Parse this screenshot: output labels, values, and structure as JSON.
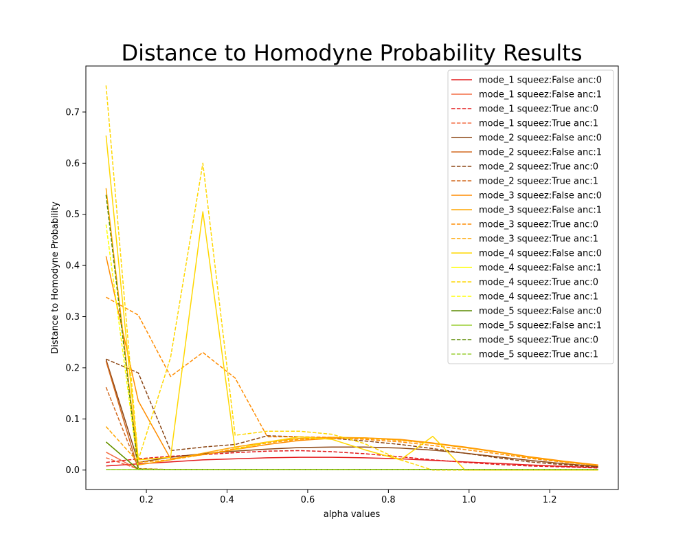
{
  "chart_data": {
    "type": "line",
    "title": "Distance to Homodyne Probability Results",
    "xlabel": "alpha values",
    "ylabel": "Distance to Homodyne Probability",
    "xlim": [
      0.05,
      1.37
    ],
    "ylim": [
      -0.038,
      0.79
    ],
    "xticks": [
      0.2,
      0.4,
      0.6,
      0.8,
      1.0,
      1.2
    ],
    "xtick_labels": [
      "0.2",
      "0.4",
      "0.6",
      "0.8",
      "1.0",
      "1.2"
    ],
    "yticks": [
      0.0,
      0.1,
      0.2,
      0.3,
      0.4,
      0.5,
      0.6,
      0.7
    ],
    "ytick_labels": [
      "0.0",
      "0.1",
      "0.2",
      "0.3",
      "0.4",
      "0.5",
      "0.6",
      "0.7"
    ],
    "legend_position": "upper-right",
    "grid": false,
    "x": [
      0.1,
      0.18,
      0.26,
      0.34,
      0.42,
      0.5,
      0.58,
      0.66,
      0.74,
      0.83,
      0.91,
      0.99,
      1.07,
      1.15,
      1.24,
      1.32
    ],
    "series": [
      {
        "name": "mode_1 squeez:False anc:0",
        "color": "#e31a1c",
        "dash": "solid",
        "values": [
          0.008,
          0.012,
          0.016,
          0.02,
          0.022,
          0.024,
          0.025,
          0.025,
          0.024,
          0.022,
          0.019,
          0.016,
          0.013,
          0.01,
          0.007,
          0.005
        ]
      },
      {
        "name": "mode_1 squeez:False anc:1",
        "color": "#f46d43",
        "dash": "solid",
        "values": [
          0.035,
          0.001,
          0.001,
          0.001,
          0.001,
          0.001,
          0.001,
          0.001,
          0.001,
          0.001,
          0.001,
          0.001,
          0.001,
          0.001,
          0.001,
          0.001
        ]
      },
      {
        "name": "mode_1 squeez:True anc:0",
        "color": "#e31a1c",
        "dash": "dashed",
        "values": [
          0.015,
          0.022,
          0.027,
          0.03,
          0.034,
          0.037,
          0.038,
          0.036,
          0.032,
          0.026,
          0.02,
          0.015,
          0.011,
          0.008,
          0.006,
          0.004
        ]
      },
      {
        "name": "mode_1 squeez:True anc:1",
        "color": "#f46d43",
        "dash": "dashed",
        "values": [
          0.024,
          0.002,
          0.001,
          0.001,
          0.001,
          0.001,
          0.001,
          0.001,
          0.001,
          0.001,
          0.001,
          0.001,
          0.001,
          0.001,
          0.001,
          0.001
        ]
      },
      {
        "name": "mode_2 squeez:False anc:0",
        "color": "#8b4513",
        "dash": "solid",
        "values": [
          0.216,
          0.015,
          0.025,
          0.032,
          0.037,
          0.041,
          0.044,
          0.045,
          0.045,
          0.043,
          0.039,
          0.033,
          0.026,
          0.019,
          0.012,
          0.007
        ]
      },
      {
        "name": "mode_2 squeez:False anc:1",
        "color": "#d2691e",
        "dash": "solid",
        "values": [
          0.213,
          0.001,
          0.001,
          0.001,
          0.001,
          0.001,
          0.001,
          0.001,
          0.001,
          0.001,
          0.001,
          0.001,
          0.001,
          0.001,
          0.001,
          0.001
        ]
      },
      {
        "name": "mode_2 squeez:True anc:0",
        "color": "#8b4513",
        "dash": "dashed",
        "values": [
          0.217,
          0.19,
          0.038,
          0.045,
          0.05,
          0.067,
          0.065,
          0.062,
          0.057,
          0.05,
          0.042,
          0.033,
          0.024,
          0.016,
          0.01,
          0.006
        ]
      },
      {
        "name": "mode_2 squeez:True anc:1",
        "color": "#d2691e",
        "dash": "dashed",
        "values": [
          0.162,
          0.003,
          0.001,
          0.001,
          0.001,
          0.001,
          0.001,
          0.001,
          0.001,
          0.001,
          0.001,
          0.001,
          0.001,
          0.001,
          0.001,
          0.001
        ]
      },
      {
        "name": "mode_3 squeez:False anc:0",
        "color": "#ff8c00",
        "dash": "solid",
        "values": [
          0.418,
          0.135,
          0.022,
          0.03,
          0.04,
          0.05,
          0.058,
          0.062,
          0.063,
          0.06,
          0.053,
          0.045,
          0.036,
          0.026,
          0.017,
          0.01
        ]
      },
      {
        "name": "mode_3 squeez:False anc:1",
        "color": "#ffa500",
        "dash": "solid",
        "values": [
          0.551,
          0.01,
          0.02,
          0.033,
          0.045,
          0.055,
          0.062,
          0.064,
          0.063,
          0.059,
          0.052,
          0.044,
          0.035,
          0.025,
          0.016,
          0.009
        ]
      },
      {
        "name": "mode_3 squeez:True anc:0",
        "color": "#ff8c00",
        "dash": "dashed",
        "values": [
          0.338,
          0.303,
          0.183,
          0.23,
          0.18,
          0.065,
          0.065,
          0.064,
          0.06,
          0.055,
          0.048,
          0.04,
          0.032,
          0.023,
          0.015,
          0.009
        ]
      },
      {
        "name": "mode_3 squeez:True anc:1",
        "color": "#ffa500",
        "dash": "dashed",
        "values": [
          0.085,
          0.015,
          0.02,
          0.03,
          0.042,
          0.053,
          0.06,
          0.063,
          0.062,
          0.058,
          0.052,
          0.044,
          0.035,
          0.025,
          0.016,
          0.009
        ]
      },
      {
        "name": "mode_4 squeez:False anc:0",
        "color": "#ffd700",
        "dash": "solid",
        "values": [
          0.654,
          0.02,
          0.025,
          0.505,
          0.04,
          0.055,
          0.065,
          0.06,
          0.04,
          0.02,
          0.066,
          0.0,
          0.0,
          0.0,
          0.0,
          0.0
        ]
      },
      {
        "name": "mode_4 squeez:False anc:1",
        "color": "#ffff00",
        "dash": "solid",
        "values": [
          0.055,
          0.001,
          0.001,
          0.001,
          0.001,
          0.001,
          0.001,
          0.001,
          0.001,
          0.001,
          0.001,
          0.001,
          0.001,
          0.001,
          0.001,
          0.001
        ]
      },
      {
        "name": "mode_4 squeez:True anc:0",
        "color": "#ffd700",
        "dash": "dashed",
        "values": [
          0.752,
          0.02,
          0.22,
          0.6,
          0.068,
          0.076,
          0.076,
          0.07,
          0.052,
          0.02,
          0.0,
          0.0,
          0.0,
          0.0,
          0.0,
          0.0
        ]
      },
      {
        "name": "mode_4 squeez:True anc:1",
        "color": "#ffff00",
        "dash": "dashed",
        "values": [
          0.48,
          0.002,
          0.001,
          0.001,
          0.001,
          0.001,
          0.001,
          0.001,
          0.001,
          0.001,
          0.001,
          0.001,
          0.001,
          0.001,
          0.001,
          0.001
        ]
      },
      {
        "name": "mode_5 squeez:False anc:0",
        "color": "#5a8a00",
        "dash": "solid",
        "values": [
          0.055,
          0.001,
          0.001,
          0.001,
          0.001,
          0.001,
          0.001,
          0.001,
          0.001,
          0.001,
          0.001,
          0.001,
          0.001,
          0.001,
          0.001,
          0.001
        ]
      },
      {
        "name": "mode_5 squeez:False anc:1",
        "color": "#9acd32",
        "dash": "solid",
        "values": [
          0.001,
          0.001,
          0.001,
          0.001,
          0.001,
          0.001,
          0.001,
          0.001,
          0.001,
          0.001,
          0.001,
          0.001,
          0.001,
          0.001,
          0.001,
          0.001
        ]
      },
      {
        "name": "mode_5 squeez:True anc:0",
        "color": "#5a8a00",
        "dash": "dashed",
        "values": [
          0.538,
          0.002,
          0.001,
          0.001,
          0.001,
          0.001,
          0.001,
          0.001,
          0.001,
          0.001,
          0.001,
          0.001,
          0.001,
          0.001,
          0.001,
          0.001
        ]
      },
      {
        "name": "mode_5 squeez:True anc:1",
        "color": "#9acd32",
        "dash": "dashed",
        "values": [
          0.001,
          0.001,
          0.001,
          0.001,
          0.001,
          0.001,
          0.001,
          0.001,
          0.001,
          0.001,
          0.001,
          0.001,
          0.001,
          0.001,
          0.001,
          0.001
        ]
      }
    ]
  }
}
